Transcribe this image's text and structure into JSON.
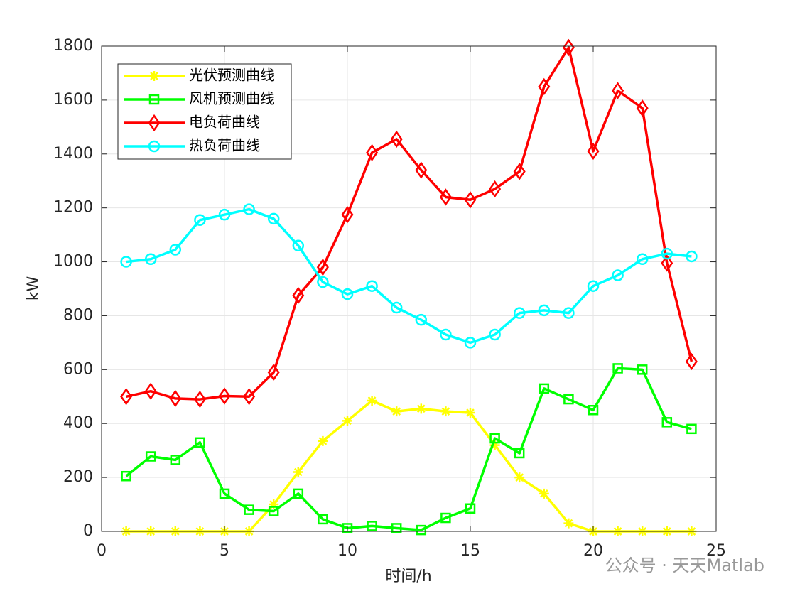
{
  "chart_data": {
    "type": "line",
    "x_label": "时间/h",
    "y_label": "kW",
    "x": [
      1,
      2,
      3,
      4,
      5,
      6,
      7,
      8,
      9,
      10,
      11,
      12,
      13,
      14,
      15,
      16,
      17,
      18,
      19,
      20,
      21,
      22,
      23,
      24
    ],
    "series": [
      {
        "name": "光伏预测曲线",
        "color": "#ffff00",
        "marker": "asterisk",
        "values": [
          0,
          0,
          0,
          0,
          0,
          0,
          100,
          220,
          335,
          410,
          485,
          445,
          455,
          445,
          440,
          320,
          200,
          140,
          30,
          0,
          0,
          0,
          0,
          0
        ]
      },
      {
        "name": "风机预测曲线",
        "color": "#00ff00",
        "marker": "square",
        "values": [
          205,
          278,
          265,
          330,
          140,
          80,
          75,
          140,
          45,
          12,
          20,
          12,
          5,
          50,
          85,
          345,
          290,
          530,
          490,
          450,
          605,
          600,
          405,
          380
        ]
      },
      {
        "name": "电负荷曲线",
        "color": "#ff0000",
        "marker": "diamond",
        "values": [
          500,
          520,
          493,
          490,
          502,
          500,
          590,
          875,
          980,
          1175,
          1405,
          1455,
          1340,
          1240,
          1230,
          1270,
          1335,
          1650,
          1795,
          1410,
          1635,
          1570,
          995,
          630
        ]
      },
      {
        "name": "热负荷曲线",
        "color": "#00ffff",
        "marker": "circle",
        "values": [
          1000,
          1010,
          1045,
          1155,
          1175,
          1195,
          1160,
          1060,
          925,
          880,
          910,
          830,
          785,
          730,
          700,
          730,
          810,
          820,
          810,
          910,
          950,
          1010,
          1030,
          1020
        ]
      }
    ],
    "xlim": [
      0,
      25
    ],
    "xticks": [
      0,
      5,
      10,
      15,
      20,
      25
    ],
    "ylim": [
      0,
      1800
    ],
    "yticks": [
      0,
      200,
      400,
      600,
      800,
      1000,
      1200,
      1400,
      1600,
      1800
    ],
    "grid": true,
    "legend": "upper-left",
    "watermark": "公众号 · 天天Matlab"
  }
}
